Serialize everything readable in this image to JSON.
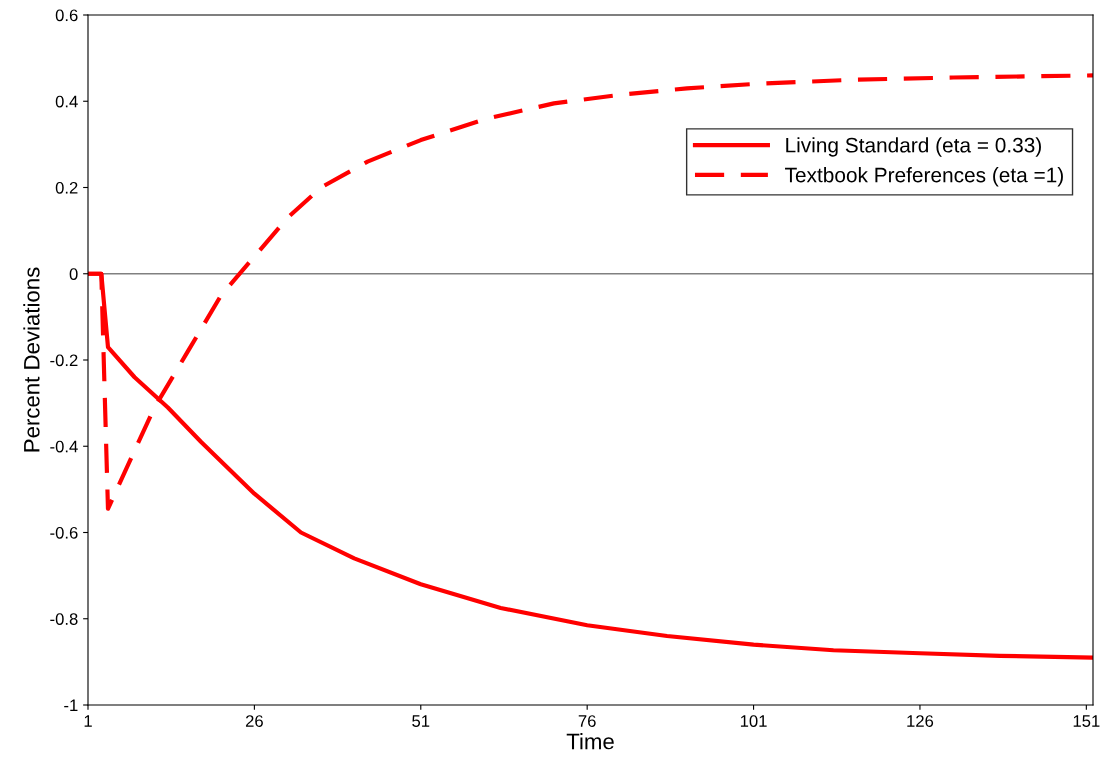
{
  "chart_data": {
    "type": "line",
    "xlabel": "Time",
    "ylabel": "Percent Deviations",
    "xlim": [
      1,
      152
    ],
    "xticks": [
      1,
      26,
      51,
      76,
      101,
      126,
      151
    ],
    "ylim": [
      -1,
      0.6
    ],
    "yticks": [
      -1,
      -0.8,
      -0.6,
      -0.4,
      -0.2,
      0,
      0.2,
      0.4,
      0.6
    ],
    "grid": false,
    "ref_lines": [
      {
        "axis": "y",
        "value": 0,
        "color": "#808080"
      }
    ],
    "legend": "top right",
    "marker": "none",
    "series": [
      {
        "name": "Living Standard (eta = 0.33)",
        "color": "#ff0000",
        "line_style": "solid",
        "x": [
          1,
          2,
          3,
          4,
          8,
          13,
          18,
          26,
          33,
          41,
          51,
          63,
          76,
          88,
          101,
          113,
          126,
          138,
          152
        ],
        "values": [
          0,
          0,
          0,
          -0.17,
          -0.24,
          -0.31,
          -0.39,
          -0.51,
          -0.6,
          -0.66,
          -0.72,
          -0.775,
          -0.815,
          -0.84,
          -0.86,
          -0.873,
          -0.88,
          -0.886,
          -0.89
        ]
      },
      {
        "name": "Textbook Preferences (eta =1)",
        "color": "#ff0000",
        "line_style": "dashed",
        "x": [
          1,
          2,
          3,
          4,
          8,
          11,
          16,
          21,
          26,
          31,
          36,
          43,
          51,
          61,
          71,
          81,
          91,
          101,
          116,
          131,
          152
        ],
        "values": [
          0,
          0,
          0,
          -0.545,
          -0.41,
          -0.31,
          -0.18,
          -0.05,
          0.04,
          0.13,
          0.2,
          0.26,
          0.31,
          0.36,
          0.395,
          0.415,
          0.43,
          0.44,
          0.45,
          0.455,
          0.46
        ]
      }
    ]
  }
}
